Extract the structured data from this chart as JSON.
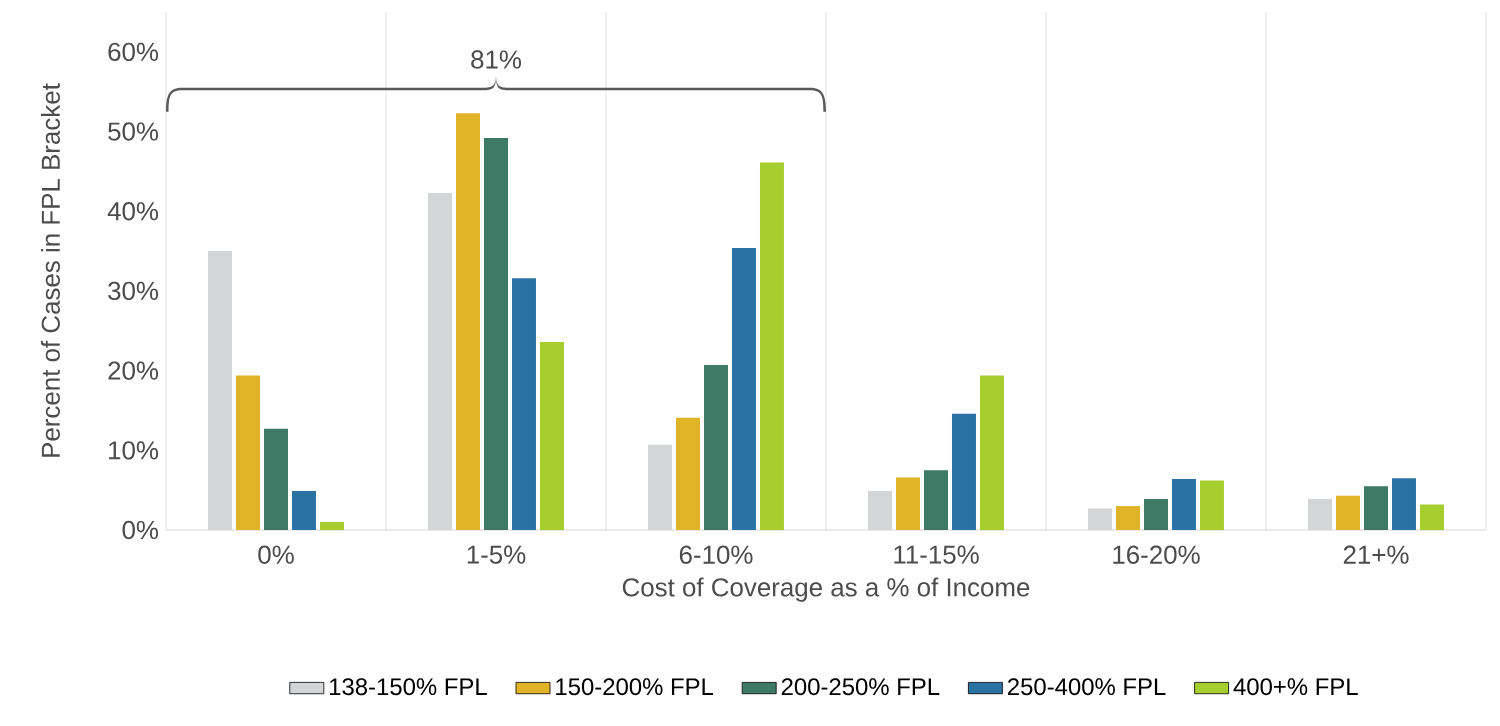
{
  "chart_data": {
    "type": "bar",
    "xlabel": "Cost of Coverage as a % of Income",
    "ylabel": "Percent of Cases in FPL Bracket",
    "categories": [
      "0%",
      "1-5%",
      "6-10%",
      "11-15%",
      "16-20%",
      "21+%"
    ],
    "series": [
      {
        "name": "138-150% FPL",
        "color": "#d4d5d7",
        "values": [
          35,
          42.3,
          10.7,
          4.9,
          2.7,
          3.9
        ]
      },
      {
        "name": "150-200% FPL",
        "color": "#e0b426",
        "values": [
          19.4,
          52.3,
          14.1,
          6.6,
          3.0,
          4.3
        ]
      },
      {
        "name": "200-250% FPL",
        "color": "#3f7a66",
        "values": [
          12.7,
          49.2,
          20.7,
          7.5,
          3.9,
          5.5
        ]
      },
      {
        "name": "250-400% FPL",
        "color": "#2b72a4",
        "values": [
          4.9,
          31.6,
          35.4,
          14.6,
          6.4,
          6.5
        ]
      },
      {
        "name": "400+% FPL",
        "color": "#a6ce2f",
        "values": [
          1.0,
          23.6,
          46.1,
          19.4,
          6.2,
          3.2
        ]
      }
    ],
    "ylim": [
      0,
      65
    ],
    "yticks": [
      {
        "value": 0,
        "label": "0%"
      },
      {
        "value": 10,
        "label": "10%"
      },
      {
        "value": 20,
        "label": "20%"
      },
      {
        "value": 30,
        "label": "30%"
      },
      {
        "value": 40,
        "label": "40%"
      },
      {
        "value": 50,
        "label": "50%"
      },
      {
        "value": 60,
        "label": "60%"
      }
    ],
    "grid": "x",
    "legend": "bottom",
    "annotations": [
      "81%"
    ]
  }
}
